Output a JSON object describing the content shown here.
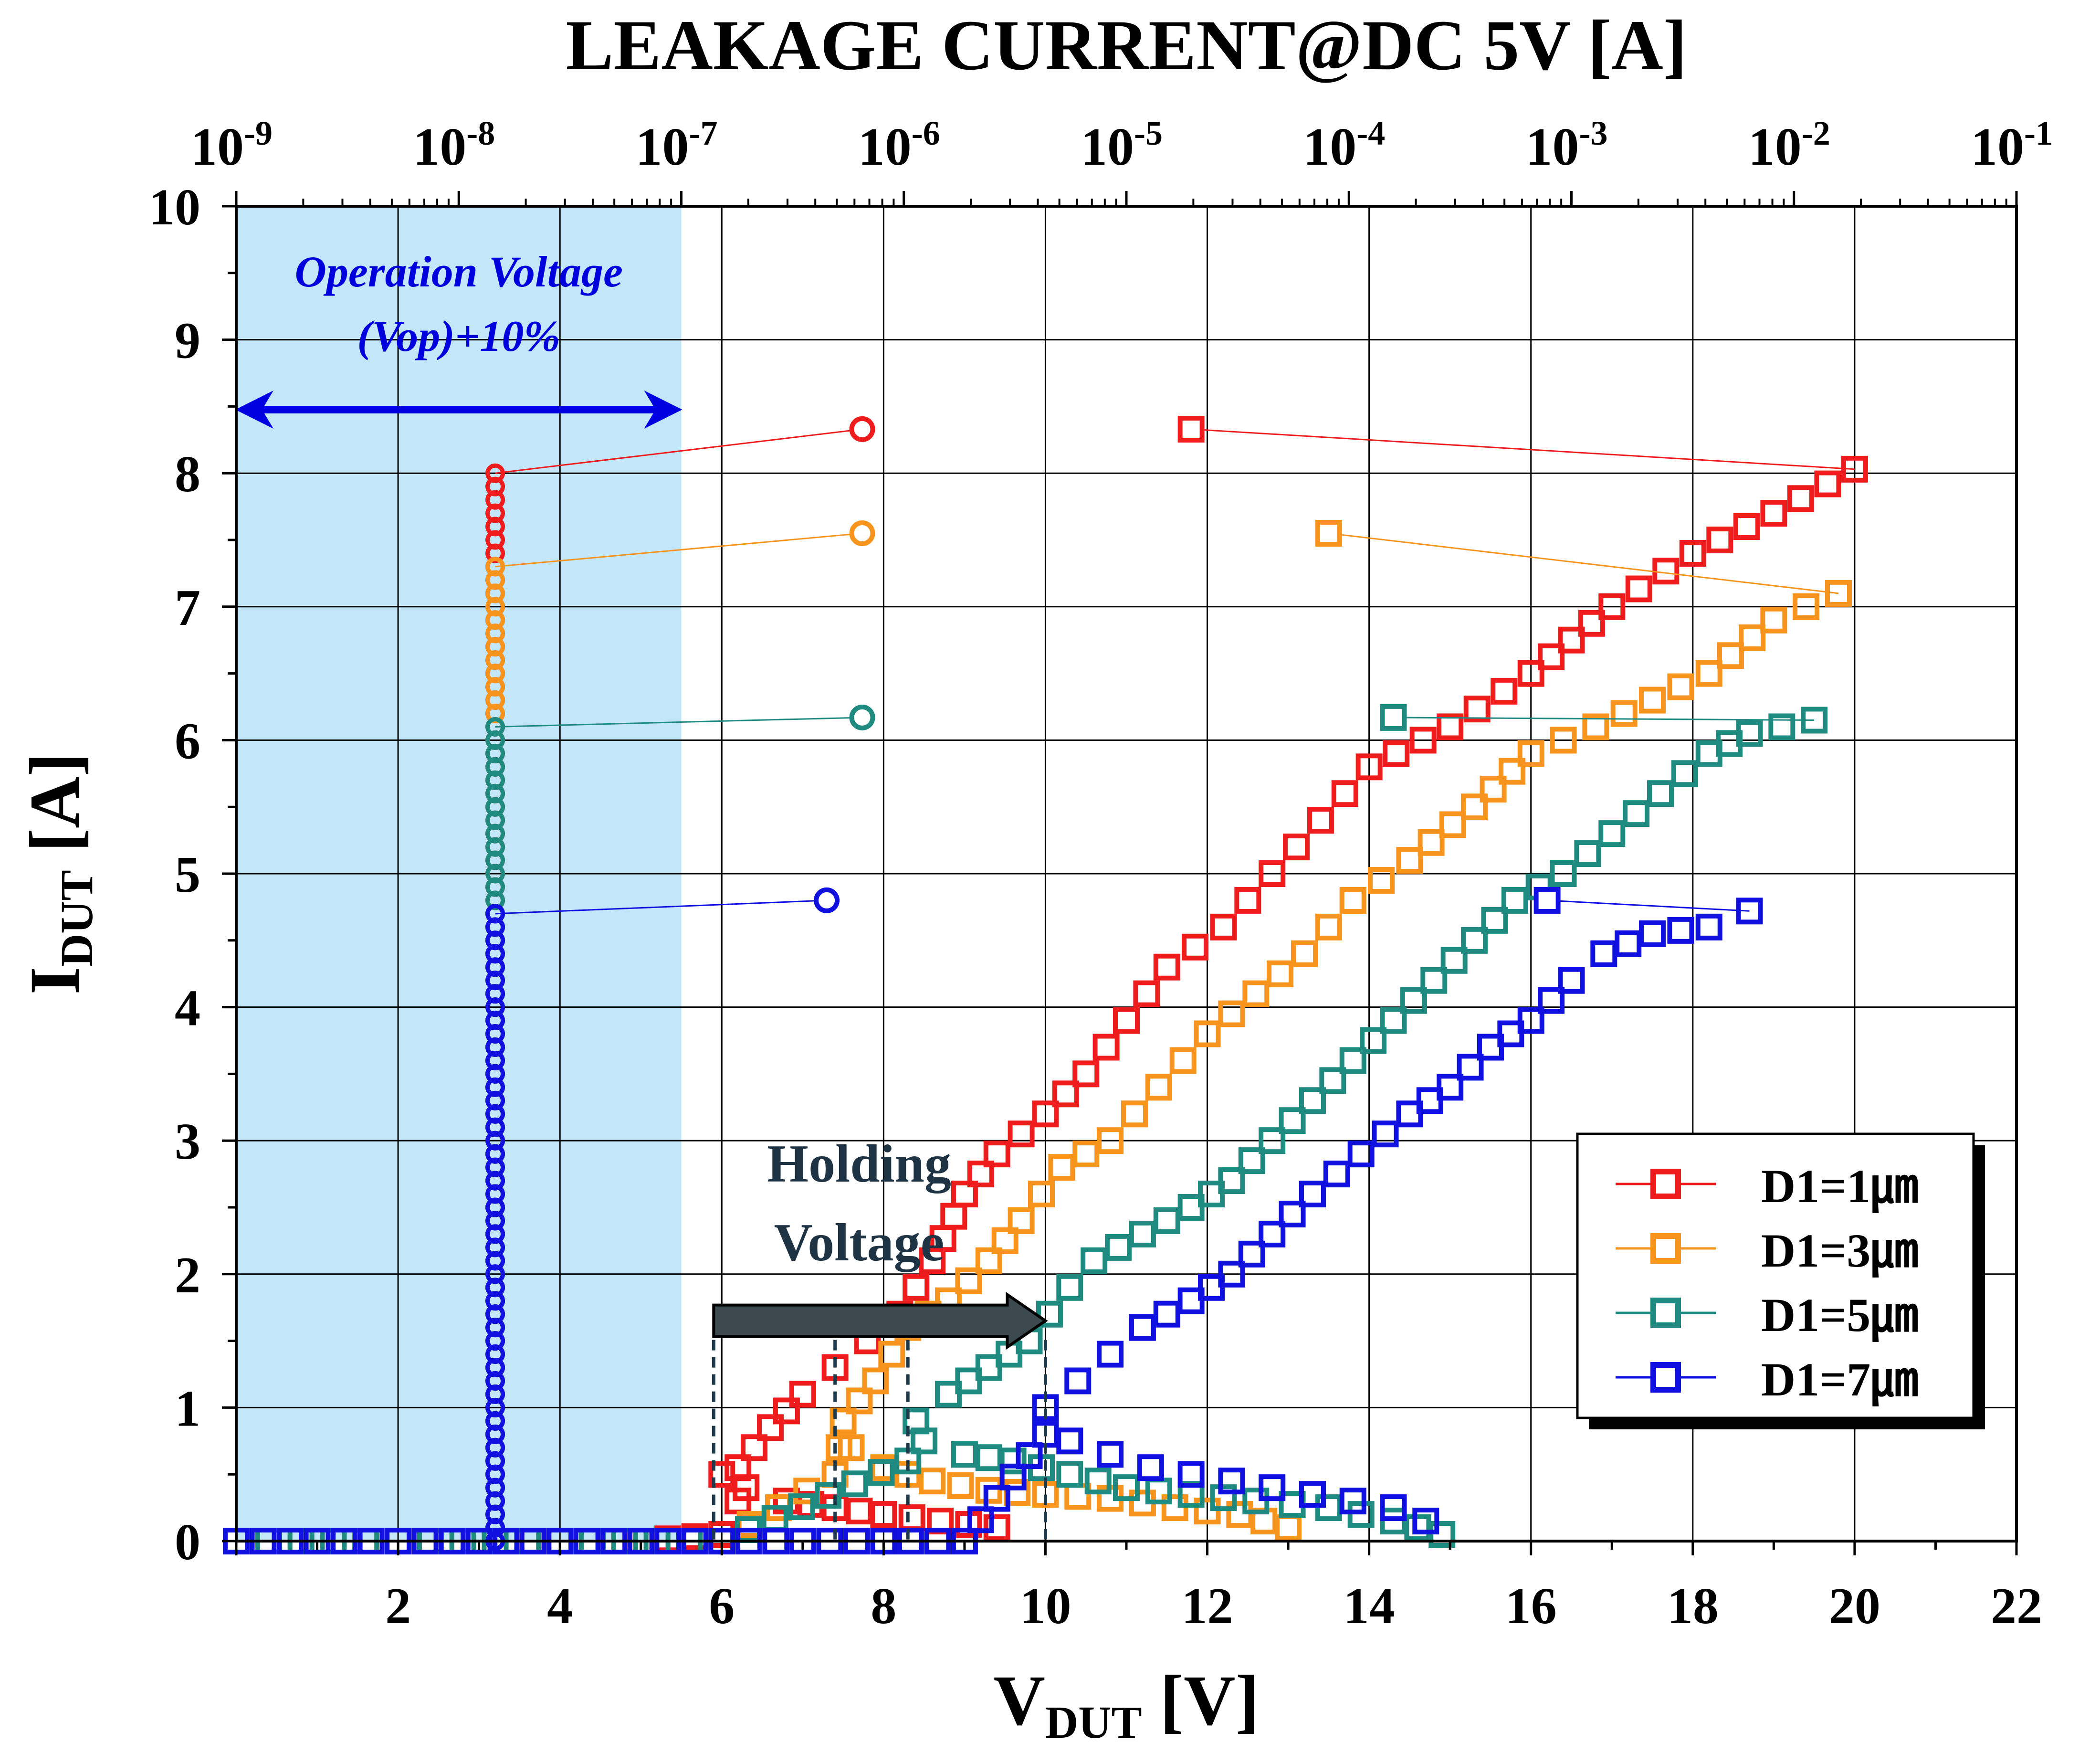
{
  "chart_data": {
    "type": "scatter",
    "top_axis_title": "LEAKAGE CURRENT@DC 5V [A]",
    "top_axis_label_base": "10",
    "top_axis_exponents": [
      "-9",
      "-8",
      "-7",
      "-6",
      "-5",
      "-4",
      "-3",
      "-2",
      "-1"
    ],
    "ylabel_main": "I",
    "ylabel_sub": "DUT",
    "ylabel_unit": " [A]",
    "xlabel_main": "V",
    "xlabel_sub": "DUT",
    "xlabel_unit": " [V]",
    "xlim": [
      0,
      22
    ],
    "ylim": [
      0,
      10
    ],
    "top_axis_log_range": [
      -9,
      -1
    ],
    "x_ticks": [
      "2",
      "4",
      "6",
      "8",
      "10",
      "12",
      "14",
      "16",
      "18",
      "20",
      "22"
    ],
    "y_ticks": [
      "0",
      "1",
      "2",
      "3",
      "4",
      "5",
      "6",
      "7",
      "8",
      "9",
      "10"
    ],
    "grid": true,
    "legend_position": "bottom-right",
    "operation_region": {
      "label_line1": "Operation Voltage",
      "label_line2": "(Vop)+10%",
      "x_range": [
        0,
        5.5
      ]
    },
    "holding_label_line1": "Holding",
    "holding_label_line2": "Voltage",
    "holding_arrow": {
      "x_start": 5.9,
      "x_end": 10.0,
      "y": 1.65
    },
    "holding_voltages": [
      5.9,
      7.4,
      8.3,
      10.0
    ],
    "series": [
      {
        "name": "D1=1㎛",
        "color": "#ee1c1c",
        "leak_x": 3.2,
        "leak_ymax": 8.0,
        "fail_point_leak": 6.5e-07,
        "fail_current": 8.33,
        "fail_voltage": 11.8,
        "iv": [
          [
            0,
            0
          ],
          [
            1,
            0
          ],
          [
            2,
            0
          ],
          [
            3,
            0
          ],
          [
            4,
            0
          ],
          [
            5,
            0
          ],
          [
            6,
            0.05
          ],
          [
            6.2,
            0.3
          ],
          [
            6.2,
            0.55
          ],
          [
            6.6,
            0.85
          ],
          [
            7.0,
            1.1
          ],
          [
            7.4,
            1.3
          ],
          [
            7.8,
            1.5
          ],
          [
            8.2,
            1.7
          ],
          [
            8.6,
            2.1
          ],
          [
            9.0,
            2.6
          ],
          [
            9.4,
            2.9
          ],
          [
            10.0,
            3.2
          ],
          [
            10.5,
            3.5
          ],
          [
            11.0,
            3.9
          ],
          [
            11.5,
            4.3
          ],
          [
            12.2,
            4.6
          ],
          [
            12.8,
            5.0
          ],
          [
            13.4,
            5.4
          ],
          [
            14.0,
            5.8
          ],
          [
            15.0,
            6.1
          ],
          [
            16.0,
            6.5
          ],
          [
            17.0,
            7.0
          ],
          [
            18.0,
            7.4
          ],
          [
            19.0,
            7.7
          ],
          [
            20.0,
            8.03
          ]
        ],
        "snapback": [
          [
            6.0,
            0.5
          ],
          [
            6.3,
            0.4
          ],
          [
            6.8,
            0.3
          ],
          [
            7.4,
            0.25
          ],
          [
            8.0,
            0.2
          ],
          [
            8.7,
            0.15
          ],
          [
            9.4,
            0.1
          ]
        ]
      },
      {
        "name": "D1=3㎛",
        "color": "#f7941d",
        "leak_x": 3.2,
        "leak_ymax": 7.3,
        "fail_point_leak": 6.5e-07,
        "fail_current": 7.55,
        "fail_voltage": 13.5,
        "iv": [
          [
            0,
            0
          ],
          [
            2,
            0
          ],
          [
            4,
            0
          ],
          [
            6,
            0
          ],
          [
            7.4,
            0.5
          ],
          [
            7.5,
            0.9
          ],
          [
            7.9,
            1.2
          ],
          [
            8.3,
            1.6
          ],
          [
            8.8,
            1.8
          ],
          [
            9.3,
            2.1
          ],
          [
            9.7,
            2.4
          ],
          [
            10.2,
            2.8
          ],
          [
            10.8,
            3.0
          ],
          [
            11.4,
            3.4
          ],
          [
            12.0,
            3.8
          ],
          [
            12.6,
            4.1
          ],
          [
            13.2,
            4.4
          ],
          [
            13.8,
            4.8
          ],
          [
            14.5,
            5.1
          ],
          [
            15.3,
            5.5
          ],
          [
            16.0,
            5.9
          ],
          [
            16.8,
            6.1
          ],
          [
            17.5,
            6.3
          ],
          [
            18.2,
            6.5
          ],
          [
            19.0,
            6.9
          ],
          [
            19.8,
            7.1
          ]
        ],
        "snapback": [
          [
            7.6,
            0.7
          ],
          [
            8.0,
            0.55
          ],
          [
            8.6,
            0.45
          ],
          [
            9.3,
            0.38
          ],
          [
            10.0,
            0.35
          ],
          [
            10.8,
            0.32
          ],
          [
            11.6,
            0.25
          ],
          [
            12.4,
            0.2
          ],
          [
            13.0,
            0.1
          ]
        ]
      },
      {
        "name": "D1=5㎛",
        "color": "#1f8a80",
        "leak_x": 3.2,
        "leak_ymax": 6.1,
        "fail_point_leak": 6.5e-07,
        "fail_current": 6.17,
        "fail_voltage": 14.3,
        "iv": [
          [
            0,
            0
          ],
          [
            2,
            0
          ],
          [
            4,
            0
          ],
          [
            6,
            0
          ],
          [
            8.3,
            0.6
          ],
          [
            8.4,
            0.9
          ],
          [
            8.8,
            1.1
          ],
          [
            9.3,
            1.3
          ],
          [
            9.8,
            1.5
          ],
          [
            10.3,
            1.9
          ],
          [
            10.6,
            2.1
          ],
          [
            11.2,
            2.3
          ],
          [
            11.8,
            2.5
          ],
          [
            12.3,
            2.7
          ],
          [
            12.8,
            3.0
          ],
          [
            13.3,
            3.3
          ],
          [
            13.8,
            3.6
          ],
          [
            14.3,
            3.9
          ],
          [
            14.8,
            4.2
          ],
          [
            15.3,
            4.5
          ],
          [
            15.8,
            4.8
          ],
          [
            16.4,
            5.0
          ],
          [
            17.0,
            5.3
          ],
          [
            17.6,
            5.6
          ],
          [
            18.2,
            5.9
          ],
          [
            18.7,
            6.05
          ],
          [
            19.5,
            6.15
          ]
        ],
        "snapback": [
          [
            8.5,
            0.75
          ],
          [
            9.0,
            0.65
          ],
          [
            9.6,
            0.6
          ],
          [
            10.3,
            0.5
          ],
          [
            11.0,
            0.4
          ],
          [
            11.8,
            0.35
          ],
          [
            12.6,
            0.3
          ],
          [
            13.5,
            0.25
          ],
          [
            14.3,
            0.15
          ],
          [
            14.9,
            0.05
          ]
        ]
      },
      {
        "name": "D1=7㎛",
        "color": "#1010e0",
        "leak_x": 3.2,
        "leak_ymax": 4.7,
        "fail_point_leak": 4.5e-07,
        "fail_current": 4.8,
        "fail_voltage": 16.2,
        "iv": [
          [
            0,
            0
          ],
          [
            1,
            0
          ],
          [
            2,
            0
          ],
          [
            3,
            0
          ],
          [
            4,
            0
          ],
          [
            5,
            0
          ],
          [
            6,
            0
          ],
          [
            7,
            0
          ],
          [
            8,
            0
          ],
          [
            9,
            0
          ],
          [
            10.0,
            0.8
          ],
          [
            10.0,
            1.0
          ],
          [
            10.4,
            1.2
          ],
          [
            10.8,
            1.4
          ],
          [
            11.2,
            1.6
          ],
          [
            11.8,
            1.8
          ],
          [
            12.3,
            2.0
          ],
          [
            12.8,
            2.3
          ],
          [
            13.3,
            2.6
          ],
          [
            13.9,
            2.9
          ],
          [
            14.5,
            3.2
          ],
          [
            15.0,
            3.4
          ],
          [
            15.5,
            3.7
          ],
          [
            16.0,
            3.9
          ],
          [
            16.5,
            4.2
          ],
          [
            16.9,
            4.4
          ],
          [
            17.5,
            4.55
          ],
          [
            18.2,
            4.6
          ],
          [
            18.7,
            4.72
          ]
        ],
        "snapback": [
          [
            10.3,
            0.75
          ],
          [
            10.8,
            0.65
          ],
          [
            11.3,
            0.55
          ],
          [
            11.8,
            0.5
          ],
          [
            12.3,
            0.45
          ],
          [
            12.8,
            0.4
          ],
          [
            13.3,
            0.35
          ],
          [
            13.8,
            0.3
          ],
          [
            14.3,
            0.25
          ],
          [
            14.7,
            0.15
          ]
        ]
      }
    ]
  }
}
